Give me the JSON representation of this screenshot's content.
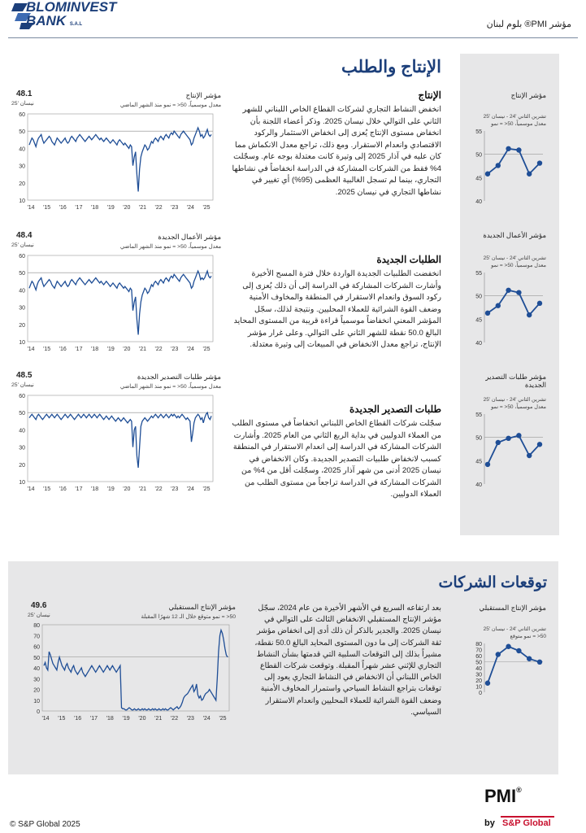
{
  "header": {
    "bank_name_line1": "BLOMINVEST",
    "bank_name_line2": "BANK",
    "bank_suffix": "S.A.L",
    "report_title": "مؤشر PMI® بلوم لبنان"
  },
  "section1": {
    "title": "الإنتاج والطلب",
    "blocks": [
      {
        "heading": "الإنتاج",
        "text": "انخفض النشاط التجاري لشركات القطاع الخاص اللبناني للشهر الثاني على التوالي خلال نيسان 2025. وذكر أعضاء اللجنة بأن انخفاض مستوى الإنتاج يُعزى إلى انخفاض الاستثمار والركود الاقتصادي وانعدام الاستقرار. ومع ذلك، تراجع معدل الانكماش مما كان عليه في آذار 2025 إلى وتيرة كانت معتدلة بوجه عام. وسجّلت 4% فقط من الشركات المشاركة في الدراسة انخفاضاً في نشاطها التجاري، بينما لم تسجل الغالبية العظمى (95%) أي تغيير في نشاطها التجاري في نيسان 2025.",
        "chart_title": "مؤشر الإنتاج",
        "chart_note": "معدل موسمياً، 50< = نمو منذ الشهر الماضي",
        "chart_value": "48.1",
        "chart_date": "نيسان '25",
        "mini_title": "مؤشر الإنتاج",
        "mini_note1": "تشرين الثاني '24 - نيسان '25",
        "mini_note2": "معدل موسمياً، 50< = نمو"
      },
      {
        "heading": "الطلبات الجديدة",
        "text": "انخفضت الطلبيات الجديدة الواردة خلال فترة المسح الأخيرة وأشارت الشركات المشاركة في الدراسة إلى أن ذلك يُعزى إلى ركود السوق وانعدام الاستقرار في المنطقة والمخاوف الأمنية وضعف القوة الشرائية للعملاء المحليين. ونتيجة لذلك، سجّل المؤشر المعني انخفاضاً موسمياً قراءة قريبة من المستوى المحايد البالغ 50.0 نقطة للشهر الثاني على التوالي. وعلى غرار مؤشر الإنتاج، تراجع معدل الانخفاض في المبيعات إلى وتيرة معتدلة.",
        "chart_title": "مؤشر الأعمال الجديدة",
        "chart_note": "معدل موسمياً، 50< = نمو منذ الشهر الماضي",
        "chart_value": "48.4",
        "chart_date": "نيسان '25",
        "mini_title": "مؤشر الأعمال الجديدة",
        "mini_note1": "تشرين الثاني '24 - نيسان '25",
        "mini_note2": "معدل موسمياً، 50< = نمو"
      },
      {
        "heading": "طلبات التصدير الجديدة",
        "text": "سجّلت شركات القطاع الخاص اللبناني انخفاضاً في مستوى الطلب من العملاء الدوليين في بداية الربع الثاني من العام 2025. وأشارت الشركات المشاركة في الدراسة إلى انعدام الاستقرار في المنطقة كسبب لانخفاض طلبيات التصدير الجديدة. وكان الانخفاض في نيسان 2025 أدنى من شهر آذار 2025، وسجّلت أقل من 4% من الشركات المشاركة في الدراسة تراجعاً من مستوى الطلب من العملاء الدوليين.",
        "chart_title": "مؤشر طلبات التصدير الجديدة",
        "chart_note": "معدل موسمياً، 50< = نمو منذ الشهر الماضي",
        "chart_value": "48.5",
        "chart_date": "نيسان '25",
        "mini_title": "مؤشر طلبات التصدير الجديدة",
        "mini_note1": "تشرين الثاني '24 - نيسان '25",
        "mini_note2": "معدل موسمياً، 50< = نمو"
      }
    ]
  },
  "section2": {
    "title": "توقعات الشركات",
    "text": "بعد ارتفاعه السريع في الأشهر الأخيرة من عام 2024، سجّل مؤشر الإنتاج المستقبلي الانخفاض الثالث على التوالي في نيسان 2025. والجدير بالذكر أن ذلك أدى إلى انخفاض مؤشر ثقة الشركات إلى ما دون المستوى المحايد البالغ 50.0 نقطة، مشيراً بذلك إلى التوقعات السلبية التي قدمتها بشأن النشاط التجاري للإثني عشر شهراً المقبلة. وتوقعت شركات القطاع الخاص اللبناني أن الانخفاض في النشاط التجاري يعود إلى توقعات بتراجع النشاط السياحي واستمرار المخاوف الأمنية وضعف القوة الشرائية للعملاء المحليين وانعدام الاستقرار السياسي.",
    "chart_title": "مؤشر الإنتاج المستقبلي",
    "chart_note": "50< = نمو متوقع خلال الـ 12 شهرًا المقبلة",
    "chart_value": "49.6",
    "chart_date": "نيسان '25",
    "mini_title": "مؤشر الإنتاج المستقبلي",
    "mini_note1": "تشرين الثاني '24 - نيسان '25",
    "mini_note2": "50< = نمو متوقع"
  },
  "footer": {
    "copyright": "© S&P Global 2025",
    "pmi": "PMI",
    "by": "by",
    "sp": "S&P Global"
  },
  "colors": {
    "brand": "#1c3f7a",
    "line": "#1f4e96",
    "panel": "#e7e7e8",
    "accent": "#c8102e"
  },
  "chart_data": [
    {
      "type": "line",
      "title": "مؤشر الإنتاج",
      "x_ticks": [
        "'14",
        "'15",
        "'16",
        "'17",
        "'18",
        "'19",
        "'20",
        "'21",
        "'22",
        "'23",
        "'24",
        "'25"
      ],
      "ylim": [
        10,
        60
      ],
      "y_ticks": [
        10,
        20,
        30,
        40,
        50,
        60
      ],
      "series": [
        {
          "values": [
            42,
            44,
            46,
            45,
            43,
            41,
            44,
            46,
            47,
            48,
            45,
            43,
            44,
            45,
            46,
            47,
            46,
            44,
            43,
            42,
            44,
            46,
            45,
            44,
            43,
            44,
            45,
            46,
            44,
            43,
            44,
            46,
            47,
            46,
            45,
            44,
            46,
            47,
            48,
            47,
            46,
            45,
            44,
            45,
            46,
            47,
            46,
            45,
            46,
            47,
            48,
            47,
            46,
            45,
            46,
            45,
            44,
            45,
            46,
            45,
            44,
            43,
            44,
            45,
            44,
            43,
            42,
            44,
            45,
            44,
            43,
            42,
            43,
            42,
            41,
            40,
            42,
            41,
            30,
            35,
            38,
            25,
            15,
            28,
            35,
            38,
            40,
            42,
            41,
            39,
            40,
            42,
            44,
            43,
            45,
            46,
            45,
            44,
            46,
            47,
            46,
            45,
            47,
            48,
            47,
            46,
            48,
            49,
            48,
            50,
            49,
            48,
            47,
            46,
            48,
            49,
            50,
            49,
            48,
            47,
            46,
            45,
            42,
            43,
            46,
            48,
            50,
            52,
            50,
            47,
            48,
            46,
            47,
            49,
            51,
            48,
            47,
            48
          ]
        }
      ]
    },
    {
      "type": "line",
      "title": "مؤشر الأعمال الجديدة",
      "x_ticks": [
        "'14",
        "'15",
        "'16",
        "'17",
        "'18",
        "'19",
        "'20",
        "'21",
        "'22",
        "'23",
        "'24",
        "'25"
      ],
      "ylim": [
        10,
        60
      ],
      "y_ticks": [
        10,
        20,
        30,
        40,
        50,
        60
      ],
      "series": [
        {
          "values": [
            41,
            43,
            45,
            44,
            42,
            40,
            43,
            45,
            46,
            47,
            44,
            42,
            43,
            44,
            45,
            46,
            45,
            43,
            42,
            41,
            43,
            45,
            44,
            43,
            42,
            43,
            44,
            45,
            43,
            42,
            43,
            45,
            46,
            45,
            44,
            43,
            45,
            46,
            47,
            46,
            45,
            44,
            43,
            44,
            45,
            46,
            45,
            44,
            45,
            46,
            47,
            46,
            45,
            44,
            45,
            44,
            43,
            44,
            45,
            44,
            43,
            42,
            43,
            44,
            43,
            42,
            41,
            43,
            44,
            43,
            42,
            41,
            42,
            41,
            40,
            39,
            41,
            40,
            28,
            33,
            36,
            23,
            14,
            26,
            33,
            37,
            39,
            41,
            40,
            38,
            39,
            41,
            43,
            42,
            44,
            45,
            44,
            43,
            45,
            46,
            45,
            44,
            46,
            47,
            46,
            45,
            47,
            48,
            47,
            49,
            48,
            47,
            46,
            45,
            47,
            48,
            49,
            48,
            47,
            46,
            45,
            44,
            41,
            42,
            45,
            47,
            49,
            51,
            49,
            46,
            47,
            46,
            47,
            49,
            51,
            48,
            47,
            48
          ]
        }
      ]
    },
    {
      "type": "line",
      "title": "مؤشر طلبات التصدير الجديدة",
      "x_ticks": [
        "'14",
        "'15",
        "'16",
        "'17",
        "'18",
        "'19",
        "'20",
        "'21",
        "'22",
        "'23",
        "'24",
        "'25"
      ],
      "ylim": [
        10,
        60
      ],
      "y_ticks": [
        10,
        20,
        30,
        40,
        50,
        60
      ],
      "series": [
        {
          "values": [
            47,
            48,
            49,
            48,
            47,
            46,
            48,
            49,
            48,
            47,
            46,
            47,
            48,
            49,
            48,
            47,
            48,
            49,
            48,
            47,
            48,
            49,
            48,
            47,
            46,
            47,
            48,
            49,
            48,
            47,
            48,
            49,
            48,
            47,
            46,
            47,
            48,
            49,
            48,
            47,
            48,
            49,
            48,
            47,
            48,
            49,
            48,
            47,
            48,
            49,
            48,
            47,
            48,
            49,
            48,
            47,
            46,
            47,
            48,
            47,
            46,
            47,
            48,
            47,
            46,
            45,
            46,
            47,
            46,
            45,
            46,
            47,
            46,
            45,
            44,
            45,
            46,
            45,
            30,
            40,
            42,
            25,
            18,
            30,
            42,
            45,
            46,
            47,
            46,
            45,
            46,
            47,
            48,
            47,
            48,
            49,
            48,
            47,
            48,
            49,
            48,
            47,
            48,
            49,
            48,
            47,
            48,
            49,
            48,
            49,
            48,
            47,
            48,
            47,
            48,
            49,
            48,
            47,
            46,
            47,
            46,
            45,
            33,
            38,
            44,
            47,
            48,
            49,
            48,
            46,
            47,
            44,
            47,
            49,
            50,
            47,
            46,
            48
          ]
        }
      ]
    },
    {
      "type": "line",
      "title": "مؤشر الإنتاج",
      "x_ticks": [],
      "ylim": [
        40,
        55
      ],
      "y_ticks": [
        40,
        45,
        50,
        55
      ],
      "series": [
        {
          "values": [
            45.8,
            47.6,
            51.2,
            50.9,
            45.8,
            48.1
          ]
        }
      ]
    },
    {
      "type": "line",
      "title": "مؤشر الأعمال الجديدة",
      "x_ticks": [],
      "ylim": [
        40,
        55
      ],
      "y_ticks": [
        40,
        45,
        50,
        55
      ],
      "series": [
        {
          "values": [
            46.3,
            47.9,
            51.2,
            50.7,
            45.9,
            48.4
          ]
        }
      ]
    },
    {
      "type": "line",
      "title": "مؤشر طلبات التصدير الجديدة",
      "x_ticks": [],
      "ylim": [
        40,
        55
      ],
      "y_ticks": [
        40,
        45,
        50,
        55
      ],
      "series": [
        {
          "values": [
            44.2,
            48.9,
            49.8,
            50.4,
            46.1,
            48.5
          ]
        }
      ]
    },
    {
      "type": "line",
      "title": "مؤشر الإنتاج المستقبلي",
      "x_ticks": [
        "'14",
        "'15",
        "'16",
        "'17",
        "'18",
        "'19",
        "'20",
        "'21",
        "'22",
        "'23",
        "'24",
        "'25"
      ],
      "ylim": [
        0,
        80
      ],
      "y_ticks": [
        0,
        10,
        20,
        30,
        40,
        50,
        60,
        70,
        80
      ],
      "series": [
        {
          "values": [
            42,
            45,
            40,
            38,
            55,
            52,
            48,
            44,
            42,
            40,
            38,
            45,
            50,
            46,
            42,
            40,
            38,
            42,
            44,
            40,
            38,
            36,
            40,
            42,
            38,
            36,
            34,
            36,
            38,
            40,
            36,
            34,
            32,
            34,
            36,
            38,
            40,
            42,
            40,
            38,
            36,
            38,
            40,
            42,
            40,
            38,
            36,
            38,
            40,
            42,
            40,
            38,
            40,
            42,
            40,
            38,
            36,
            38,
            40,
            42,
            3,
            2,
            2,
            1,
            1,
            2,
            3,
            2,
            1,
            1,
            2,
            1,
            1,
            2,
            1,
            1,
            2,
            1,
            2,
            1,
            1,
            2,
            1,
            1,
            2,
            1,
            2,
            1,
            1,
            2,
            1,
            1,
            2,
            1,
            2,
            1,
            1,
            2,
            3,
            2,
            1,
            2,
            3,
            4,
            2,
            3,
            5,
            8,
            12,
            14,
            15,
            16,
            18,
            20,
            22,
            24,
            18,
            20,
            25,
            15,
            12,
            14,
            10,
            11,
            14,
            16,
            17,
            18,
            20,
            18,
            16,
            14,
            12,
            10,
            30,
            55,
            70,
            75,
            72,
            66,
            58,
            52,
            50
          ]
        }
      ]
    },
    {
      "type": "line",
      "title": "مؤشر الإنتاج المستقبلي",
      "x_ticks": [],
      "ylim": [
        0,
        80
      ],
      "y_ticks": [
        0,
        10,
        20,
        30,
        40,
        50,
        60,
        70,
        80
      ],
      "series": [
        {
          "values": [
            15,
            62,
            75,
            68,
            55,
            49.6
          ]
        }
      ]
    }
  ]
}
